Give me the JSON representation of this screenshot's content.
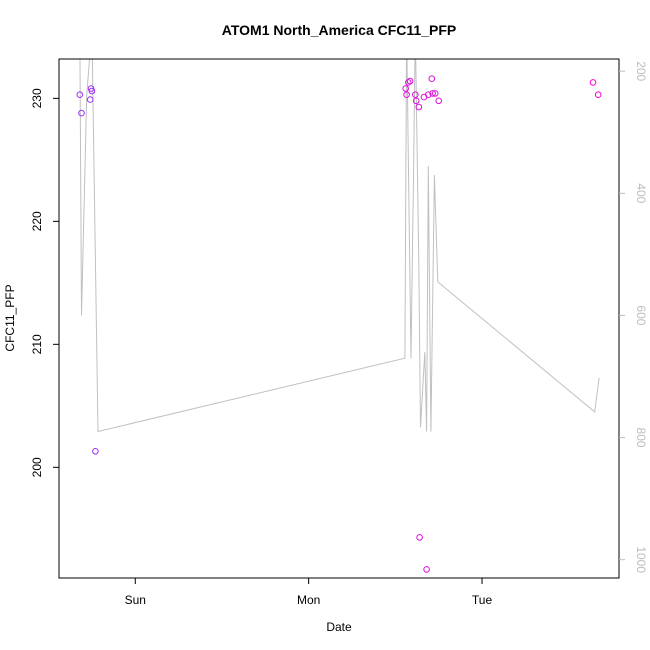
{
  "chart_data": {
    "type": "scatter",
    "title": "ATOM1 North_America CFC11_PFP",
    "xlabel": "Date",
    "ylabel": "CFC11_PFP",
    "x_ticks": [
      "Sun",
      "Mon",
      "Tue"
    ],
    "x_tick_values": [
      1.0,
      2.0,
      3.0
    ],
    "xlim": [
      0.56,
      3.79
    ],
    "ylim": [
      191.0,
      233.2
    ],
    "y_ticks": [
      200,
      210,
      220,
      230
    ],
    "y2_ticks": [
      200,
      400,
      600,
      800,
      1000
    ],
    "y2lim": [
      180,
      1030
    ],
    "y2_reversed": true,
    "grid": false,
    "series": [
      {
        "role": "points",
        "color": "#9b30ff",
        "points": [
          {
            "x": 0.68,
            "y": 230.3
          },
          {
            "x": 0.69,
            "y": 228.8
          },
          {
            "x": 0.74,
            "y": 229.9
          },
          {
            "x": 0.745,
            "y": 230.8
          },
          {
            "x": 0.75,
            "y": 230.6
          },
          {
            "x": 0.77,
            "y": 201.3
          },
          {
            "x": 2.56,
            "y": 230.8
          },
          {
            "x": 2.565,
            "y": 230.3
          },
          {
            "x": 2.575,
            "y": 231.3
          },
          {
            "x": 2.585,
            "y": 231.4
          },
          {
            "x": 2.615,
            "y": 230.3
          },
          {
            "x": 2.62,
            "y": 229.8
          },
          {
            "x": 2.635,
            "y": 229.3
          },
          {
            "x": 2.64,
            "y": 194.3
          },
          {
            "x": 2.665,
            "y": 230.1
          },
          {
            "x": 2.68,
            "y": 191.7
          },
          {
            "x": 2.69,
            "y": 230.3
          },
          {
            "x": 2.71,
            "y": 231.6
          },
          {
            "x": 2.715,
            "y": 230.4
          },
          {
            "x": 2.73,
            "y": 230.4
          },
          {
            "x": 2.75,
            "y": 229.8
          },
          {
            "x": 3.64,
            "y": 231.3
          },
          {
            "x": 3.67,
            "y": 230.3
          }
        ]
      },
      {
        "role": "line",
        "axis": "right",
        "color": "#c0c0c0",
        "points": [
          {
            "x": 0.68,
            "y": 130
          },
          {
            "x": 0.69,
            "y": 600
          },
          {
            "x": 0.72,
            "y": 240
          },
          {
            "x": 0.75,
            "y": 130
          },
          {
            "x": 0.785,
            "y": 790
          },
          {
            "x": 2.555,
            "y": 670
          },
          {
            "x": 2.565,
            "y": 130
          },
          {
            "x": 2.59,
            "y": 670
          },
          {
            "x": 2.605,
            "y": 360
          },
          {
            "x": 2.615,
            "y": 130
          },
          {
            "x": 2.635,
            "y": 515
          },
          {
            "x": 2.645,
            "y": 783
          },
          {
            "x": 2.67,
            "y": 660
          },
          {
            "x": 2.68,
            "y": 790
          },
          {
            "x": 2.69,
            "y": 355
          },
          {
            "x": 2.705,
            "y": 790
          },
          {
            "x": 2.725,
            "y": 370
          },
          {
            "x": 2.745,
            "y": 545
          },
          {
            "x": 3.65,
            "y": 758
          },
          {
            "x": 3.675,
            "y": 702
          }
        ]
      }
    ]
  }
}
